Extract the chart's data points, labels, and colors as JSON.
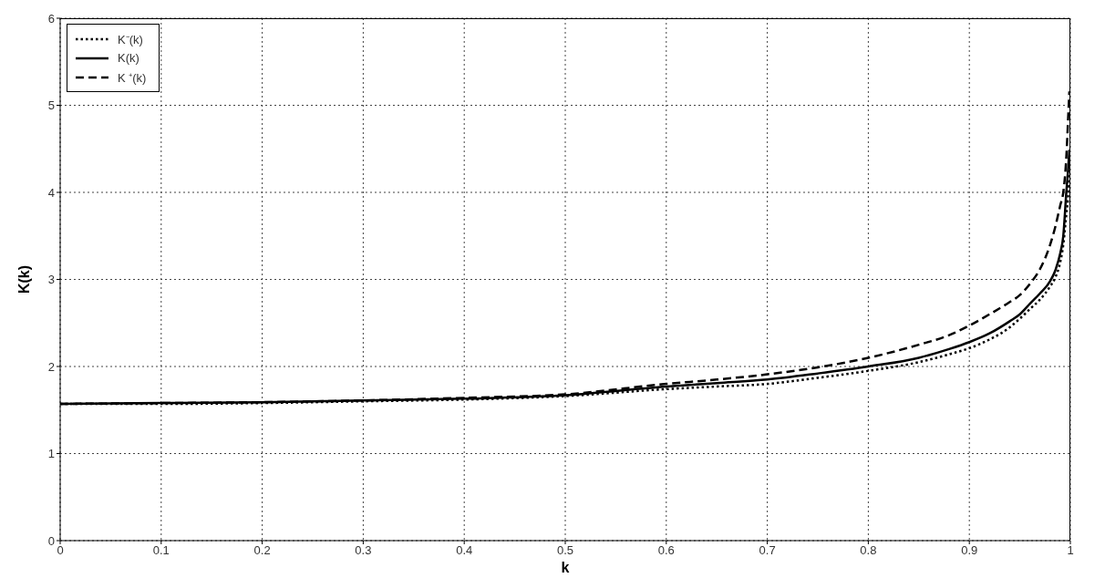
{
  "chart_data": {
    "type": "line",
    "xlabel": "k",
    "ylabel": "K(k)",
    "xlim": [
      0,
      1
    ],
    "xticks": [
      0,
      0.1,
      0.2,
      0.3,
      0.4,
      0.5,
      0.6,
      0.7,
      0.8,
      0.9,
      1
    ],
    "ylim": [
      0,
      6
    ],
    "yticks": [
      0,
      1,
      2,
      3,
      4,
      5,
      6
    ],
    "grid": true,
    "legend": "top left",
    "marker": "none",
    "series": [
      {
        "name": "K⁻(k)",
        "color": "#000000",
        "line_style": "dotted",
        "x": [
          0,
          0.1,
          0.2,
          0.3,
          0.4,
          0.5,
          0.6,
          0.65,
          0.7,
          0.75,
          0.8,
          0.85,
          0.88,
          0.9,
          0.92,
          0.94,
          0.95,
          0.96,
          0.97,
          0.98,
          0.985,
          0.99,
          0.993,
          0.996,
          0.998,
          0.999
        ],
        "values": [
          1.57,
          1.57,
          1.58,
          1.6,
          1.62,
          1.66,
          1.74,
          1.77,
          1.8,
          1.87,
          1.95,
          2.05,
          2.14,
          2.21,
          2.31,
          2.45,
          2.55,
          2.66,
          2.77,
          2.92,
          3.02,
          3.2,
          3.4,
          3.75,
          4.0,
          4.39
        ]
      },
      {
        "name": "K(k)",
        "color": "#000000",
        "line_style": "solid",
        "x": [
          0,
          0.1,
          0.2,
          0.3,
          0.4,
          0.5,
          0.6,
          0.65,
          0.7,
          0.75,
          0.8,
          0.85,
          0.88,
          0.9,
          0.92,
          0.94,
          0.95,
          0.96,
          0.97,
          0.98,
          0.985,
          0.99,
          0.993,
          0.996,
          0.998,
          0.999
        ],
        "values": [
          1.57,
          1.58,
          1.59,
          1.61,
          1.63,
          1.67,
          1.77,
          1.81,
          1.85,
          1.92,
          2.0,
          2.1,
          2.2,
          2.28,
          2.38,
          2.52,
          2.6,
          2.72,
          2.84,
          2.98,
          3.1,
          3.3,
          3.5,
          4.0,
          4.3,
          4.49
        ]
      },
      {
        "name": "K ⁺(k)",
        "color": "#000000",
        "line_style": "dashed",
        "x": [
          0,
          0.1,
          0.2,
          0.3,
          0.4,
          0.5,
          0.6,
          0.65,
          0.7,
          0.75,
          0.8,
          0.85,
          0.88,
          0.9,
          0.92,
          0.94,
          0.95,
          0.96,
          0.97,
          0.98,
          0.985,
          0.99,
          0.993,
          0.996,
          0.998,
          0.999
        ],
        "values": [
          1.57,
          1.58,
          1.59,
          1.61,
          1.64,
          1.68,
          1.8,
          1.85,
          1.91,
          1.99,
          2.1,
          2.25,
          2.36,
          2.47,
          2.6,
          2.74,
          2.82,
          2.95,
          3.12,
          3.4,
          3.6,
          3.85,
          4.0,
          4.4,
          4.9,
          5.16
        ]
      }
    ]
  }
}
